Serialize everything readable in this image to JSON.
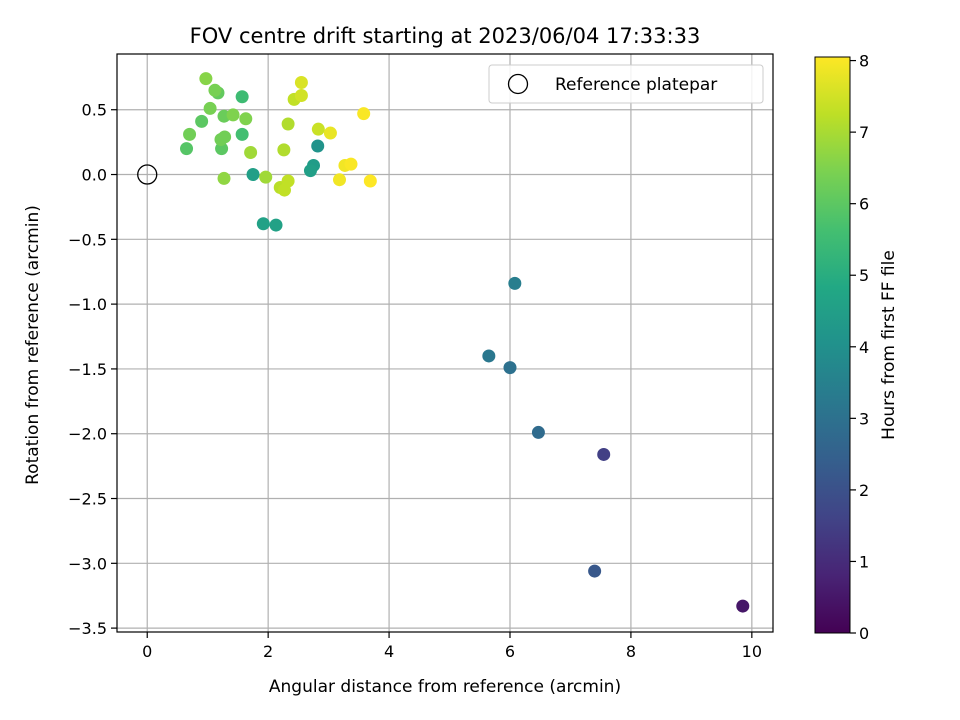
{
  "chart_data": {
    "type": "scatter",
    "title": "FOV centre drift starting at 2023/06/04 17:33:33",
    "xlabel": "Angular distance from reference (arcmin)",
    "ylabel": "Rotation from reference (arcmin)",
    "xlim": [
      -0.5,
      10.35
    ],
    "ylim": [
      -3.53,
      0.93
    ],
    "xticks": [
      0,
      2,
      4,
      6,
      8,
      10
    ],
    "yticks": [
      0.5,
      0.0,
      -0.5,
      -1.0,
      -1.5,
      -2.0,
      -2.5,
      -3.0,
      -3.5
    ],
    "xtick_labels": [
      "0",
      "2",
      "4",
      "6",
      "8",
      "10"
    ],
    "ytick_labels": [
      "0.5",
      "0.0",
      "−0.5",
      "−1.0",
      "−1.5",
      "−2.0",
      "−2.5",
      "−3.0",
      "−3.5"
    ],
    "grid": true,
    "legend": {
      "position": "top-right",
      "entries": [
        "Reference platepar"
      ]
    },
    "reference_point": {
      "x": 0.0,
      "y": 0.0
    },
    "colormap": "viridis",
    "colorbar": {
      "label": "Hours from first FF file",
      "range": [
        0,
        8.05
      ],
      "ticks": [
        0,
        1,
        2,
        3,
        4,
        5,
        6,
        7,
        8
      ],
      "tick_labels": [
        "0",
        "1",
        "2",
        "3",
        "4",
        "5",
        "6",
        "7",
        "8"
      ]
    },
    "points": [
      {
        "x": 9.85,
        "y": -3.33,
        "hours": 0.5
      },
      {
        "x": 7.55,
        "y": -2.16,
        "hours": 1.5
      },
      {
        "x": 7.4,
        "y": -3.06,
        "hours": 2.2
      },
      {
        "x": 6.47,
        "y": -1.99,
        "hours": 2.8
      },
      {
        "x": 6.0,
        "y": -1.49,
        "hours": 3.0
      },
      {
        "x": 5.65,
        "y": -1.4,
        "hours": 3.2
      },
      {
        "x": 6.08,
        "y": -0.84,
        "hours": 3.4
      },
      {
        "x": 2.82,
        "y": 0.22,
        "hours": 4.1
      },
      {
        "x": 2.75,
        "y": 0.07,
        "hours": 4.4
      },
      {
        "x": 2.7,
        "y": 0.03,
        "hours": 4.5
      },
      {
        "x": 1.75,
        "y": 0.0,
        "hours": 4.5
      },
      {
        "x": 1.92,
        "y": -0.38,
        "hours": 4.6
      },
      {
        "x": 2.13,
        "y": -0.39,
        "hours": 4.6
      },
      {
        "x": 1.57,
        "y": 0.6,
        "hours": 5.5
      },
      {
        "x": 1.57,
        "y": 0.31,
        "hours": 5.6
      },
      {
        "x": 0.65,
        "y": 0.2,
        "hours": 5.9
      },
      {
        "x": 0.9,
        "y": 0.41,
        "hours": 6.0
      },
      {
        "x": 1.23,
        "y": 0.2,
        "hours": 6.0
      },
      {
        "x": 1.17,
        "y": 0.63,
        "hours": 6.1
      },
      {
        "x": 1.27,
        "y": 0.45,
        "hours": 6.2
      },
      {
        "x": 0.7,
        "y": 0.31,
        "hours": 6.3
      },
      {
        "x": 1.22,
        "y": 0.27,
        "hours": 6.3
      },
      {
        "x": 1.28,
        "y": 0.29,
        "hours": 6.3
      },
      {
        "x": 1.12,
        "y": 0.65,
        "hours": 6.4
      },
      {
        "x": 1.04,
        "y": 0.51,
        "hours": 6.4
      },
      {
        "x": 1.42,
        "y": 0.46,
        "hours": 6.5
      },
      {
        "x": 1.63,
        "y": 0.43,
        "hours": 6.5
      },
      {
        "x": 0.97,
        "y": 0.74,
        "hours": 6.6
      },
      {
        "x": 1.27,
        "y": -0.03,
        "hours": 6.7
      },
      {
        "x": 1.71,
        "y": 0.17,
        "hours": 6.9
      },
      {
        "x": 1.96,
        "y": -0.02,
        "hours": 6.9
      },
      {
        "x": 2.26,
        "y": 0.19,
        "hours": 7.1
      },
      {
        "x": 2.33,
        "y": 0.39,
        "hours": 7.1
      },
      {
        "x": 2.2,
        "y": -0.1,
        "hours": 7.2
      },
      {
        "x": 2.27,
        "y": -0.12,
        "hours": 7.3
      },
      {
        "x": 2.33,
        "y": -0.05,
        "hours": 7.3
      },
      {
        "x": 2.43,
        "y": 0.58,
        "hours": 7.3
      },
      {
        "x": 2.83,
        "y": 0.35,
        "hours": 7.4
      },
      {
        "x": 2.55,
        "y": 0.61,
        "hours": 7.5
      },
      {
        "x": 2.55,
        "y": 0.71,
        "hours": 7.6
      },
      {
        "x": 3.03,
        "y": 0.32,
        "hours": 7.8
      },
      {
        "x": 3.18,
        "y": -0.04,
        "hours": 7.9
      },
      {
        "x": 3.27,
        "y": 0.07,
        "hours": 7.9
      },
      {
        "x": 3.37,
        "y": 0.08,
        "hours": 8.0
      },
      {
        "x": 3.58,
        "y": 0.47,
        "hours": 8.0
      },
      {
        "x": 3.69,
        "y": -0.05,
        "hours": 8.05
      }
    ]
  }
}
